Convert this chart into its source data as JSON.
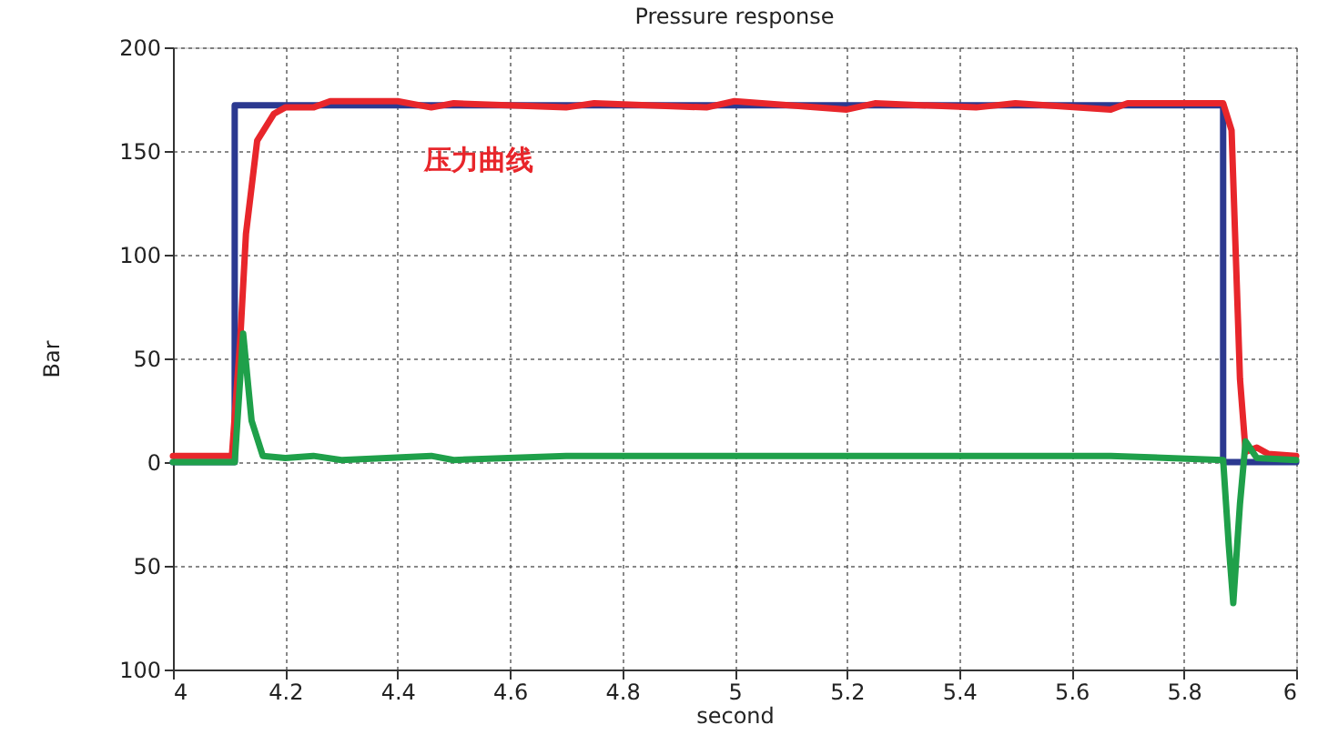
{
  "chart_data": {
    "type": "line",
    "title": "Pressure response",
    "xlabel": "second",
    "ylabel": "Bar",
    "xlim": [
      4,
      6
    ],
    "xticks": [
      4,
      4.2,
      4.4,
      4.6,
      4.8,
      5,
      5.2,
      5.4,
      5.6,
      5.8,
      6
    ],
    "ylim": [
      -100,
      200
    ],
    "yticks": [
      {
        "value": -100,
        "label": "100"
      },
      {
        "value": -50,
        "label": "50"
      },
      0,
      50,
      100,
      150,
      200
    ],
    "grid": true,
    "marker": "none",
    "line_style": "solid",
    "annotations": [
      "压力曲线"
    ],
    "series": [
      {
        "color": "#2b3990",
        "x": [
          4,
          4.11,
          4.11,
          5.87,
          5.87,
          6
        ],
        "values": [
          0,
          0,
          172,
          172,
          0,
          0
        ]
      },
      {
        "color": "#e8262b",
        "x": [
          4,
          4.105,
          4.12,
          4.13,
          4.15,
          4.18,
          4.2,
          4.25,
          4.28,
          4.4,
          4.46,
          4.5,
          4.7,
          4.75,
          4.95,
          5.0,
          5.2,
          5.25,
          5.43,
          5.5,
          5.67,
          5.7,
          5.87,
          5.885,
          5.9,
          5.91,
          5.93,
          5.95,
          6
        ],
        "values": [
          3,
          3,
          60,
          110,
          155,
          168,
          171,
          171,
          174,
          174,
          171,
          173,
          171,
          173,
          171,
          174,
          170,
          173,
          171,
          173,
          170,
          173,
          173,
          160,
          40,
          5,
          7,
          4,
          3
        ]
      },
      {
        "color": "#1fa04a",
        "x": [
          4,
          4.11,
          4.125,
          4.14,
          4.16,
          4.2,
          4.25,
          4.3,
          4.46,
          4.5,
          4.7,
          4.95,
          5.2,
          5.43,
          5.67,
          5.87,
          5.88,
          5.888,
          5.9,
          5.91,
          5.93,
          6
        ],
        "values": [
          0,
          0,
          62,
          20,
          3,
          2,
          3,
          1,
          3,
          1,
          3,
          3,
          3,
          3,
          3,
          1,
          -40,
          -68,
          -20,
          10,
          2,
          1
        ]
      }
    ]
  }
}
